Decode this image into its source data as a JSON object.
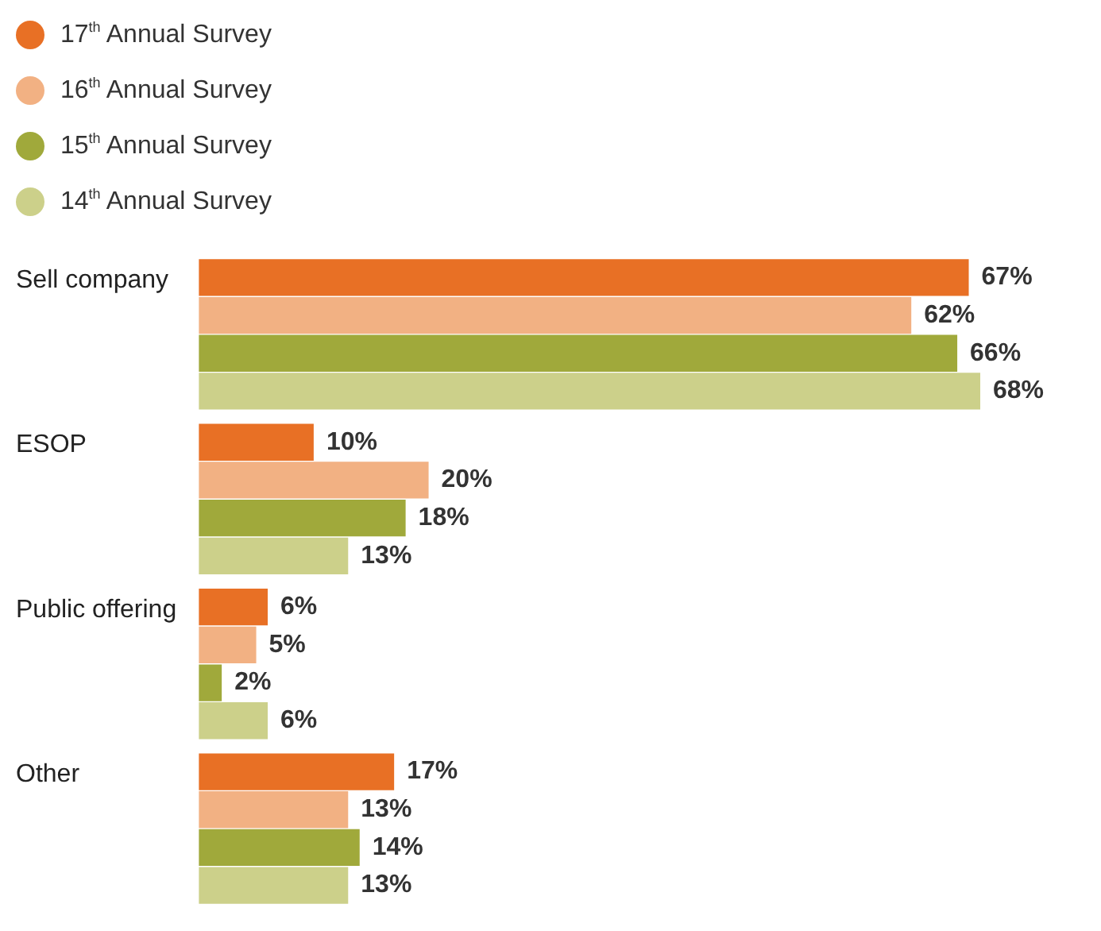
{
  "chart_data": {
    "type": "bar",
    "orientation": "horizontal",
    "categories": [
      "Sell company",
      "ESOP",
      "Public offering",
      "Other"
    ],
    "series": [
      {
        "name": "17$^{th}$ Annual Survey",
        "color": "#e87025",
        "values": [
          67,
          10,
          6,
          17
        ],
        "value_labels": [
          "67%",
          "10%",
          "6%",
          "17%"
        ]
      },
      {
        "name": "16$^{th}$ Annual Survey",
        "color": "#f2b183",
        "values": [
          62,
          20,
          5,
          13
        ],
        "value_labels": [
          "62%",
          "20%",
          "5%",
          "13%"
        ]
      },
      {
        "name": "15$^{th}$ Annual Survey",
        "color": "#a0a93b",
        "values": [
          66,
          18,
          2,
          14
        ],
        "value_labels": [
          "66%",
          "18%",
          "2%",
          "14%"
        ]
      },
      {
        "name": "14$^{th}$ Annual Survey",
        "color": "#ccd08a",
        "values": [
          68,
          13,
          6,
          13
        ],
        "value_labels": [
          "68%",
          "13%",
          "6%",
          "13%"
        ]
      }
    ],
    "legend": "top left",
    "tick_labels": "y"
  }
}
